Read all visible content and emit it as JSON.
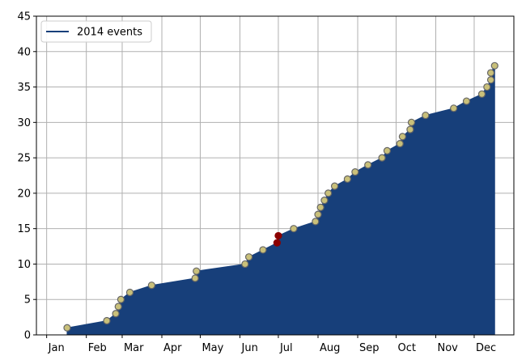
{
  "chart_data": {
    "type": "area",
    "title": "",
    "xlabel": "",
    "ylabel": "",
    "ylim": [
      0,
      45
    ],
    "yticks": [
      0,
      5,
      10,
      15,
      20,
      25,
      30,
      35,
      40,
      45
    ],
    "xlim_day_of_year": [
      -8,
      365
    ],
    "xtick_positions_day_of_year": [
      0,
      31,
      59,
      90,
      120,
      151,
      181,
      212,
      243,
      273,
      304,
      334
    ],
    "xtick_labels": [
      "Jan",
      "Feb",
      "Mar",
      "Apr",
      "May",
      "Jun",
      "Jul",
      "Aug",
      "Sep",
      "Oct",
      "Nov",
      "Dec"
    ],
    "grid": true,
    "legend": {
      "position": "top-left",
      "entries": [
        "2014 events"
      ]
    },
    "colors": {
      "fill": "#173f7a",
      "line": "#173f7a",
      "marker": "#c9c07a",
      "marker_edge": "#666666",
      "highlight": "#8b0000",
      "grid": "#b0b0b0"
    },
    "series": [
      {
        "name": "2014 events",
        "x_day_of_year": [
          16,
          47,
          54,
          56,
          58,
          65,
          82,
          116,
          117,
          155,
          158,
          169,
          180,
          181,
          193,
          210,
          212,
          214,
          217,
          220,
          225,
          235,
          241,
          251,
          262,
          266,
          276,
          278,
          284,
          285,
          296,
          318,
          328,
          340,
          344,
          347,
          347,
          350
        ],
        "y": [
          1,
          2,
          3,
          4,
          5,
          6,
          7,
          8,
          9,
          10,
          11,
          12,
          13,
          14,
          15,
          16,
          17,
          18,
          19,
          20,
          21,
          22,
          23,
          24,
          25,
          26,
          27,
          28,
          29,
          30,
          31,
          32,
          33,
          34,
          35,
          36,
          37,
          38
        ],
        "highlighted_points_index": [
          12,
          13
        ]
      }
    ]
  }
}
